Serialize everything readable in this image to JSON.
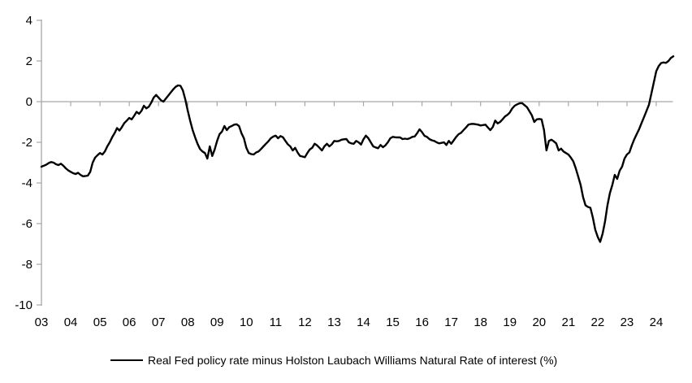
{
  "chart_data": {
    "type": "line",
    "title": "",
    "grid": false,
    "legend_position": "bottom-center",
    "axis_color": "#a6a6a6",
    "line_color": "#000000",
    "background_color": "#ffffff",
    "ylim": [
      -10,
      4
    ],
    "y_ticks": [
      4,
      2,
      0,
      -2,
      -4,
      -6,
      -8,
      -10
    ],
    "zero_baseline": true,
    "x_categories": [
      "03",
      "04",
      "05",
      "06",
      "07",
      "08",
      "09",
      "10",
      "11",
      "12",
      "13",
      "14",
      "15",
      "16",
      "17",
      "18",
      "19",
      "20",
      "21",
      "22",
      "23",
      "24"
    ],
    "series": [
      {
        "name": "Real Fed policy rate minus Holston Laubach Williams Natural Rate of interest (%)",
        "color": "#000000",
        "x_start": "2003-01",
        "x_end": "2024-08",
        "frequency": "monthly",
        "values": [
          -3.2,
          -3.15,
          -3.1,
          -3.02,
          -2.97,
          -3.0,
          -3.08,
          -3.12,
          -3.05,
          -3.15,
          -3.28,
          -3.38,
          -3.45,
          -3.52,
          -3.56,
          -3.5,
          -3.6,
          -3.67,
          -3.66,
          -3.64,
          -3.45,
          -3.0,
          -2.75,
          -2.63,
          -2.53,
          -2.6,
          -2.45,
          -2.2,
          -2.0,
          -1.75,
          -1.55,
          -1.3,
          -1.42,
          -1.25,
          -1.05,
          -0.93,
          -0.8,
          -0.87,
          -0.7,
          -0.5,
          -0.6,
          -0.45,
          -0.2,
          -0.33,
          -0.25,
          -0.05,
          0.2,
          0.33,
          0.2,
          0.07,
          0.0,
          0.15,
          0.3,
          0.45,
          0.6,
          0.73,
          0.8,
          0.78,
          0.55,
          0.1,
          -0.45,
          -0.95,
          -1.4,
          -1.75,
          -2.07,
          -2.33,
          -2.45,
          -2.53,
          -2.8,
          -2.2,
          -2.67,
          -2.35,
          -1.93,
          -1.6,
          -1.47,
          -1.2,
          -1.4,
          -1.25,
          -1.2,
          -1.13,
          -1.11,
          -1.2,
          -1.55,
          -1.8,
          -2.27,
          -2.53,
          -2.58,
          -2.6,
          -2.5,
          -2.45,
          -2.33,
          -2.2,
          -2.07,
          -1.95,
          -1.8,
          -1.72,
          -1.67,
          -1.8,
          -1.69,
          -1.75,
          -1.93,
          -2.1,
          -2.2,
          -2.4,
          -2.27,
          -2.5,
          -2.67,
          -2.7,
          -2.73,
          -2.53,
          -2.35,
          -2.27,
          -2.07,
          -2.15,
          -2.27,
          -2.4,
          -2.2,
          -2.07,
          -2.2,
          -2.1,
          -1.93,
          -1.95,
          -1.93,
          -1.87,
          -1.85,
          -1.84,
          -2.0,
          -2.05,
          -2.07,
          -1.93,
          -2.0,
          -2.11,
          -1.85,
          -1.67,
          -1.8,
          -2.0,
          -2.2,
          -2.25,
          -2.29,
          -2.13,
          -2.24,
          -2.15,
          -2.0,
          -1.8,
          -1.73,
          -1.75,
          -1.76,
          -1.76,
          -1.84,
          -1.82,
          -1.84,
          -1.8,
          -1.73,
          -1.71,
          -1.55,
          -1.36,
          -1.5,
          -1.68,
          -1.73,
          -1.84,
          -1.9,
          -1.93,
          -2.0,
          -2.05,
          -2.03,
          -2.0,
          -2.13,
          -1.93,
          -2.07,
          -1.9,
          -1.73,
          -1.6,
          -1.53,
          -1.4,
          -1.27,
          -1.13,
          -1.1,
          -1.09,
          -1.11,
          -1.13,
          -1.17,
          -1.15,
          -1.13,
          -1.27,
          -1.4,
          -1.25,
          -0.93,
          -1.07,
          -1.0,
          -0.87,
          -0.73,
          -0.65,
          -0.53,
          -0.33,
          -0.2,
          -0.13,
          -0.08,
          -0.07,
          -0.17,
          -0.27,
          -0.47,
          -0.67,
          -1.0,
          -0.87,
          -0.85,
          -0.87,
          -1.4,
          -2.4,
          -1.93,
          -1.87,
          -1.95,
          -2.05,
          -2.4,
          -2.31,
          -2.45,
          -2.53,
          -2.6,
          -2.75,
          -2.93,
          -3.27,
          -3.67,
          -4.1,
          -4.7,
          -5.1,
          -5.18,
          -5.22,
          -5.7,
          -6.3,
          -6.65,
          -6.9,
          -6.5,
          -5.9,
          -5.1,
          -4.5,
          -4.1,
          -3.6,
          -3.8,
          -3.4,
          -3.2,
          -2.8,
          -2.6,
          -2.5,
          -2.15,
          -1.85,
          -1.6,
          -1.35,
          -1.05,
          -0.75,
          -0.45,
          -0.15,
          0.4,
          0.95,
          1.5,
          1.75,
          1.9,
          1.93,
          1.91,
          2.0,
          2.15,
          2.23
        ]
      }
    ]
  }
}
